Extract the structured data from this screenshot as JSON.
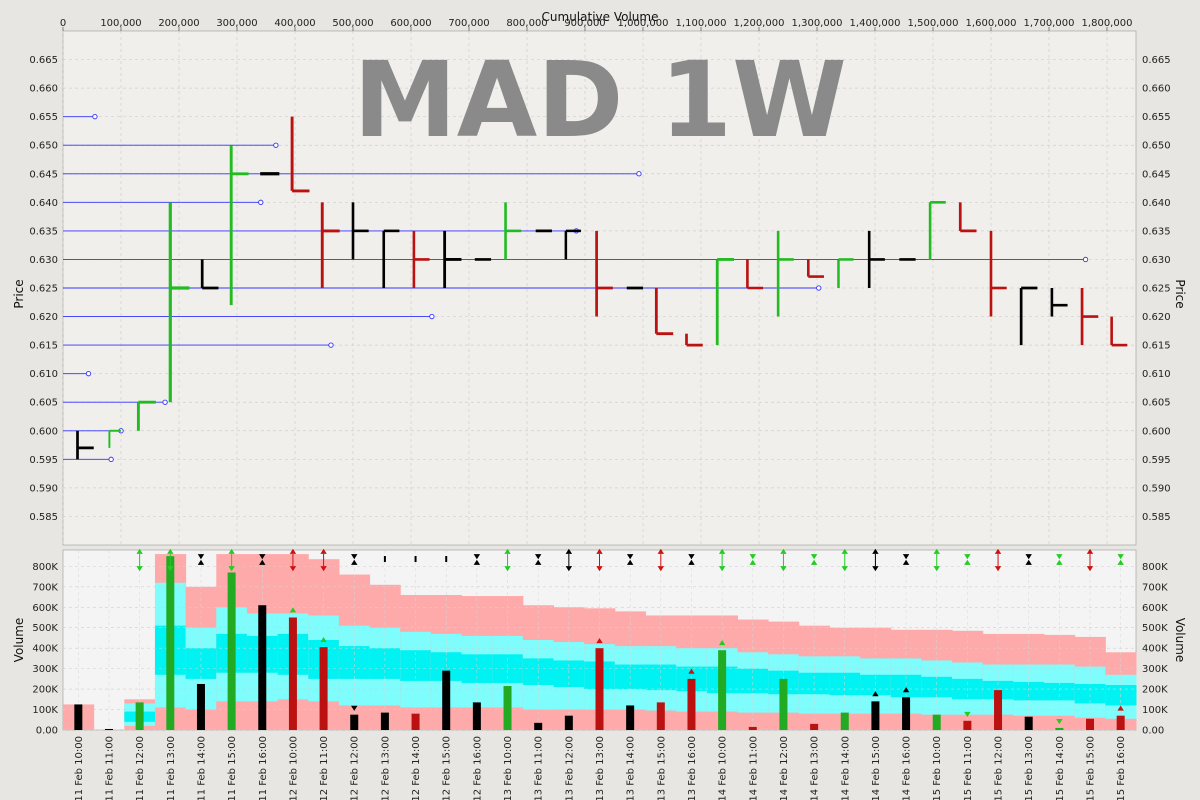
{
  "chart_data": [
    {
      "type": "bar",
      "subtype": "equivolume-ohlc",
      "title": "Cumulative Volume",
      "watermark": "MAD 1W",
      "xlabel": "Cumulative Volume",
      "ylabel": "Price",
      "xlim": [
        0,
        1850000
      ],
      "ylim": [
        0.58,
        0.67
      ],
      "x_ticks": [
        0,
        100000,
        200000,
        300000,
        400000,
        500000,
        600000,
        700000,
        800000,
        900000,
        1000000,
        1100000,
        1200000,
        1300000,
        1400000,
        1500000,
        1600000,
        1700000,
        1800000
      ],
      "x_tick_labels": [
        "0",
        "100,000",
        "200,000",
        "300,000",
        "400,000",
        "500,000",
        "600,000",
        "700,000",
        "800,000",
        "900,000",
        "1,000,000",
        "1,100,000",
        "1,200,000",
        "1,300,000",
        "1,400,000",
        "1,500,000",
        "1,600,000",
        "1,700,000",
        "1,800,000"
      ],
      "y_ticks": [
        0.585,
        0.59,
        0.595,
        0.6,
        0.605,
        0.61,
        0.615,
        0.62,
        0.625,
        0.63,
        0.635,
        0.64,
        0.645,
        0.65,
        0.655,
        0.66,
        0.665
      ],
      "y_tick_labels": [
        "0.585",
        "0.590",
        "0.595",
        "0.600",
        "0.605",
        "0.610",
        "0.615",
        "0.620",
        "0.625",
        "0.630",
        "0.635",
        "0.640",
        "0.645",
        "0.650",
        "0.655",
        "0.660",
        "0.665"
      ],
      "grid": true,
      "colors": {
        "up": "#22bb22",
        "down": "#bb1111",
        "flat": "#000000",
        "level": "#3333ff",
        "background": "#f0efec"
      },
      "bars": [
        {
          "x0": 25000,
          "x1": 53000,
          "open": 0.597,
          "high": 0.6,
          "low": 0.595,
          "close": 0.597
        },
        {
          "x0": 80000,
          "x1": 100000,
          "open": 0.597,
          "high": 0.6,
          "low": 0.597,
          "close": 0.6
        },
        {
          "x0": 130000,
          "x1": 160000,
          "open": 0.6,
          "high": 0.605,
          "low": 0.6,
          "close": 0.605
        },
        {
          "x0": 185000,
          "x1": 218000,
          "open": 0.605,
          "high": 0.64,
          "low": 0.605,
          "close": 0.625
        },
        {
          "x0": 240000,
          "x1": 268000,
          "open": 0.625,
          "high": 0.63,
          "low": 0.625,
          "close": 0.625
        },
        {
          "x0": 290000,
          "x1": 320000,
          "open": 0.622,
          "high": 0.65,
          "low": 0.622,
          "close": 0.645
        },
        {
          "x0": 340000,
          "x1": 373000,
          "open": 0.645,
          "high": 0.645,
          "low": 0.645,
          "close": 0.645
        },
        {
          "x0": 395000,
          "x1": 425000,
          "open": 0.655,
          "high": 0.655,
          "low": 0.642,
          "close": 0.642
        },
        {
          "x0": 447000,
          "x1": 477000,
          "open": 0.64,
          "high": 0.64,
          "low": 0.625,
          "close": 0.635
        },
        {
          "x0": 500000,
          "x1": 527000,
          "open": 0.635,
          "high": 0.64,
          "low": 0.63,
          "close": 0.635
        },
        {
          "x0": 553000,
          "x1": 580000,
          "open": 0.635,
          "high": 0.635,
          "low": 0.625,
          "close": 0.635
        },
        {
          "x0": 605000,
          "x1": 632000,
          "open": 0.635,
          "high": 0.635,
          "low": 0.625,
          "close": 0.63
        },
        {
          "x0": 658000,
          "x1": 687000,
          "open": 0.63,
          "high": 0.635,
          "low": 0.625,
          "close": 0.63
        },
        {
          "x0": 710000,
          "x1": 738000,
          "open": 0.63,
          "high": 0.63,
          "low": 0.63,
          "close": 0.63
        },
        {
          "x0": 763000,
          "x1": 790000,
          "open": 0.63,
          "high": 0.64,
          "low": 0.63,
          "close": 0.635
        },
        {
          "x0": 815000,
          "x1": 843000,
          "open": 0.635,
          "high": 0.635,
          "low": 0.635,
          "close": 0.635
        },
        {
          "x0": 867000,
          "x1": 893000,
          "open": 0.635,
          "high": 0.635,
          "low": 0.63,
          "close": 0.635
        },
        {
          "x0": 920000,
          "x1": 948000,
          "open": 0.635,
          "high": 0.635,
          "low": 0.62,
          "close": 0.625
        },
        {
          "x0": 972000,
          "x1": 1000000,
          "open": 0.625,
          "high": 0.625,
          "low": 0.625,
          "close": 0.625
        },
        {
          "x0": 1023000,
          "x1": 1052000,
          "open": 0.625,
          "high": 0.625,
          "low": 0.617,
          "close": 0.617
        },
        {
          "x0": 1075000,
          "x1": 1103000,
          "open": 0.617,
          "high": 0.617,
          "low": 0.615,
          "close": 0.615
        },
        {
          "x0": 1128000,
          "x1": 1157000,
          "open": 0.615,
          "high": 0.63,
          "low": 0.615,
          "close": 0.63
        },
        {
          "x0": 1180000,
          "x1": 1207000,
          "open": 0.63,
          "high": 0.63,
          "low": 0.625,
          "close": 0.625
        },
        {
          "x0": 1233000,
          "x1": 1260000,
          "open": 0.62,
          "high": 0.635,
          "low": 0.62,
          "close": 0.63
        },
        {
          "x0": 1285000,
          "x1": 1312000,
          "open": 0.63,
          "high": 0.63,
          "low": 0.627,
          "close": 0.627
        },
        {
          "x0": 1337000,
          "x1": 1363000,
          "open": 0.625,
          "high": 0.63,
          "low": 0.625,
          "close": 0.63
        },
        {
          "x0": 1390000,
          "x1": 1417000,
          "open": 0.63,
          "high": 0.635,
          "low": 0.625,
          "close": 0.63
        },
        {
          "x0": 1442000,
          "x1": 1470000,
          "open": 0.63,
          "high": 0.63,
          "low": 0.63,
          "close": 0.63
        },
        {
          "x0": 1495000,
          "x1": 1522000,
          "open": 0.63,
          "high": 0.64,
          "low": 0.63,
          "close": 0.64
        },
        {
          "x0": 1547000,
          "x1": 1575000,
          "open": 0.64,
          "high": 0.64,
          "low": 0.635,
          "close": 0.635
        },
        {
          "x0": 1600000,
          "x1": 1627000,
          "open": 0.635,
          "high": 0.635,
          "low": 0.62,
          "close": 0.625
        },
        {
          "x0": 1652000,
          "x1": 1680000,
          "open": 0.625,
          "high": 0.625,
          "low": 0.615,
          "close": 0.625
        },
        {
          "x0": 1705000,
          "x1": 1732000,
          "open": 0.622,
          "high": 0.625,
          "low": 0.62,
          "close": 0.622
        },
        {
          "x0": 1757000,
          "x1": 1785000,
          "open": 0.625,
          "high": 0.625,
          "low": 0.615,
          "close": 0.62
        },
        {
          "x0": 1808000,
          "x1": 1835000,
          "open": 0.62,
          "high": 0.62,
          "low": 0.615,
          "close": 0.615
        }
      ],
      "levels": [
        {
          "price": 0.655,
          "end": 55000
        },
        {
          "price": 0.65,
          "end": 367000
        },
        {
          "price": 0.645,
          "end": 993000
        },
        {
          "price": 0.64,
          "end": 341000
        },
        {
          "price": 0.635,
          "end": 885000
        },
        {
          "price": 0.63,
          "end": 1763000
        },
        {
          "price": 0.625,
          "end": 1303000
        },
        {
          "price": 0.62,
          "end": 636000
        },
        {
          "price": 0.615,
          "end": 462000
        },
        {
          "price": 0.61,
          "end": 44000
        },
        {
          "price": 0.605,
          "end": 176000
        },
        {
          "price": 0.6,
          "end": 100000
        },
        {
          "price": 0.595,
          "end": 83000
        }
      ]
    },
    {
      "type": "bar",
      "subtype": "volume",
      "xlabel": "",
      "ylabel": "Volume",
      "ylim": [
        0,
        880000
      ],
      "y_ticks": [
        0,
        100000,
        200000,
        300000,
        400000,
        500000,
        600000,
        700000,
        800000
      ],
      "y_tick_labels": [
        "0.00",
        "100K",
        "200K",
        "300K",
        "400K",
        "500K",
        "600K",
        "700K",
        "800K"
      ],
      "grid": true,
      "categories": [
        "11 Feb 10:00",
        "11 Feb 11:00",
        "11 Feb 12:00",
        "11 Feb 13:00",
        "11 Feb 14:00",
        "11 Feb 15:00",
        "11 Feb 16:00",
        "12 Feb 10:00",
        "12 Feb 11:00",
        "12 Feb 12:00",
        "12 Feb 13:00",
        "12 Feb 14:00",
        "12 Feb 15:00",
        "12 Feb 16:00",
        "13 Feb 10:00",
        "13 Feb 11:00",
        "13 Feb 12:00",
        "13 Feb 13:00",
        "13 Feb 14:00",
        "13 Feb 15:00",
        "13 Feb 16:00",
        "14 Feb 10:00",
        "14 Feb 11:00",
        "14 Feb 12:00",
        "14 Feb 13:00",
        "14 Feb 14:00",
        "14 Feb 15:00",
        "14 Feb 16:00",
        "15 Feb 10:00",
        "15 Feb 11:00",
        "15 Feb 12:00",
        "15 Feb 13:00",
        "15 Feb 14:00",
        "15 Feb 15:00",
        "15 Feb 16:00"
      ],
      "values": [
        125000,
        5000,
        135000,
        850000,
        225000,
        770000,
        610000,
        550000,
        405000,
        75000,
        85000,
        80000,
        290000,
        135000,
        215000,
        35000,
        70000,
        400000,
        120000,
        135000,
        250000,
        390000,
        15000,
        250000,
        30000,
        85000,
        140000,
        160000,
        75000,
        45000,
        195000,
        65000,
        10000,
        55000,
        70000
      ],
      "colors": [
        "flat",
        "flat",
        "up",
        "up",
        "flat",
        "up",
        "flat",
        "down",
        "down",
        "flat",
        "flat",
        "down",
        "flat",
        "flat",
        "up",
        "flat",
        "flat",
        "down",
        "flat",
        "down",
        "down",
        "up",
        "down",
        "up",
        "down",
        "up",
        "flat",
        "flat",
        "up",
        "down",
        "down",
        "flat",
        "up",
        "down",
        "down"
      ],
      "band_pink": [
        125000,
        0,
        150000,
        860000,
        700000,
        860000,
        860000,
        860000,
        835000,
        760000,
        710000,
        660000,
        660000,
        655000,
        655000,
        610000,
        600000,
        595000,
        580000,
        560000,
        560000,
        560000,
        540000,
        530000,
        510000,
        500000,
        500000,
        490000,
        490000,
        485000,
        470000,
        470000,
        465000,
        455000,
        380000
      ],
      "band_light_cyan_top": [
        0,
        0,
        130000,
        720000,
        500000,
        600000,
        570000,
        570000,
        560000,
        510000,
        500000,
        480000,
        470000,
        460000,
        460000,
        440000,
        430000,
        420000,
        410000,
        410000,
        400000,
        400000,
        380000,
        370000,
        360000,
        360000,
        350000,
        350000,
        340000,
        330000,
        320000,
        320000,
        320000,
        310000,
        270000
      ],
      "band_cyan_top": [
        0,
        0,
        90000,
        510000,
        400000,
        470000,
        460000,
        470000,
        440000,
        410000,
        400000,
        390000,
        380000,
        370000,
        370000,
        350000,
        340000,
        335000,
        320000,
        320000,
        310000,
        310000,
        300000,
        290000,
        280000,
        280000,
        270000,
        270000,
        260000,
        250000,
        240000,
        235000,
        230000,
        225000,
        220000
      ],
      "band_cyan_bottom": [
        0,
        0,
        40000,
        270000,
        250000,
        280000,
        280000,
        270000,
        250000,
        250000,
        250000,
        240000,
        240000,
        230000,
        230000,
        220000,
        210000,
        200000,
        200000,
        195000,
        190000,
        180000,
        180000,
        175000,
        175000,
        170000,
        170000,
        160000,
        160000,
        150000,
        150000,
        145000,
        145000,
        130000,
        120000
      ],
      "band_light_cyan_bottom": [
        0,
        0,
        20000,
        110000,
        100000,
        140000,
        140000,
        150000,
        140000,
        120000,
        120000,
        110000,
        110000,
        110000,
        110000,
        100000,
        100000,
        100000,
        100000,
        95000,
        90000,
        90000,
        85000,
        85000,
        80000,
        80000,
        80000,
        80000,
        75000,
        75000,
        75000,
        70000,
        70000,
        60000,
        55000
      ],
      "signals": [
        "",
        "",
        "both-up",
        "both-up",
        "hourglass",
        "both-up",
        "hourglass",
        "both-down",
        "both-down",
        "hourglass",
        "dash",
        "dash",
        "dash",
        "hourglass",
        "both-up",
        "hourglass",
        "both-flat",
        "both-down",
        "hourglass",
        "both-down",
        "hourglass",
        "both-up",
        "hourglass-up",
        "both-up",
        "hourglass-up",
        "both-up",
        "both-flat",
        "hourglass",
        "both-up",
        "hourglass-up",
        "both-down",
        "hourglass",
        "hourglass-up",
        "both-down",
        "hourglass-up"
      ],
      "markers": [
        "",
        "",
        "",
        "",
        "",
        "",
        "",
        "up-green",
        "up-green",
        "down-black",
        "",
        "",
        "",
        "",
        "",
        "",
        "",
        "up-red",
        "",
        "",
        "up-red",
        "up-green",
        "",
        "",
        "",
        "",
        "up-black",
        "up-black",
        "",
        "down-green",
        "",
        "",
        "down-green",
        "",
        "up-red"
      ]
    }
  ]
}
